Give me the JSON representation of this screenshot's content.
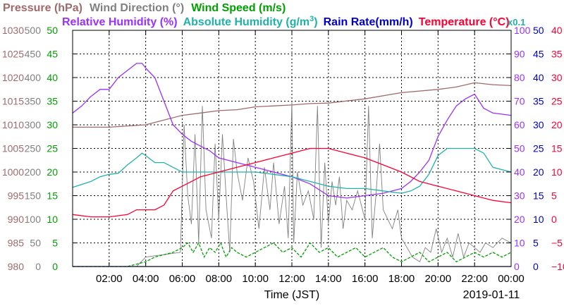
{
  "chart_data": {
    "type": "line",
    "xlabel": "Time (JST)",
    "date_label": "2019-01-11",
    "x_tick_labels": [
      "02:00",
      "04:00",
      "06:00",
      "08:00",
      "10:00",
      "12:00",
      "14:00",
      "16:00",
      "18:00",
      "20:00",
      "22:00",
      "00:00"
    ],
    "xlim_hours": [
      0,
      24
    ],
    "grid": true,
    "legend": {
      "row1": [
        {
          "label": "Pressure (hPa)",
          "color": "#a06a6a"
        },
        {
          "label": "Wind Direction (°)",
          "color": "#808080"
        },
        {
          "label": "Wind Speed (m/s)",
          "color": "#00a000"
        }
      ],
      "row2": [
        {
          "label": "Relative Humidity (%)",
          "color": "#9b30ff"
        },
        {
          "label": "Absolute Humidity (g/m",
          "sup": "3",
          "close": ")",
          "color": "#20b2aa"
        },
        {
          "label": "Rain Rate(mm/h)",
          "color": "#0000cd"
        },
        {
          "label": "Temperature (°C)",
          "color": "#ff0033"
        },
        {
          "label": "x0.1",
          "color": "#20b2aa"
        }
      ]
    },
    "axes": [
      {
        "name": "Pressure (hPa)",
        "side": "left",
        "color": "#a06a6a",
        "ylim": [
          980,
          1030
        ],
        "ticks": [
          "980",
          "985",
          "990",
          "995",
          "1000",
          "1005",
          "1010",
          "1015",
          "1020",
          "1025",
          "1030"
        ]
      },
      {
        "name": "Wind Direction (°)",
        "side": "left",
        "color": "#808080",
        "ylim": [
          0,
          500
        ],
        "ticks": [
          "0",
          "50",
          "100",
          "150",
          "200",
          "250",
          "300",
          "350",
          "400",
          "450",
          "500"
        ]
      },
      {
        "name": "Wind Speed (m/s)",
        "side": "left",
        "color": "#00a000",
        "ylim": [
          0,
          50
        ],
        "ticks": [
          "0",
          "5",
          "10",
          "15",
          "20",
          "25",
          "30",
          "35",
          "40",
          "45",
          "50"
        ]
      },
      {
        "name": "Relative Humidity (%)",
        "side": "right",
        "color": "#9b30ff",
        "ylim": [
          0,
          100
        ],
        "ticks": [
          "0",
          "10",
          "20",
          "30",
          "40",
          "50",
          "60",
          "70",
          "80",
          "90",
          "100"
        ]
      },
      {
        "name": "Rain Rate(mm/h)",
        "side": "right",
        "color": "#0000cd",
        "ylim": [
          0,
          50
        ],
        "ticks": [
          "0",
          "5",
          "10",
          "15",
          "20",
          "25",
          "30",
          "35",
          "40",
          "45",
          "50"
        ]
      },
      {
        "name": "Temperature (°C)",
        "side": "right",
        "color": "#ff0033",
        "ylim": [
          -10,
          40
        ],
        "ticks": [
          "−10",
          "−5",
          "0",
          "5",
          "10",
          "15",
          "20",
          "25",
          "30",
          "35",
          "40"
        ]
      }
    ],
    "series": [
      {
        "name": "Pressure (hPa)",
        "color": "#a06a6a",
        "axis": 0,
        "x": [
          0,
          2,
          4,
          5,
          6,
          7,
          8,
          9,
          10,
          11,
          12,
          13,
          14,
          16,
          18,
          20,
          21,
          22,
          23,
          24
        ],
        "y": [
          1009.5,
          1009.5,
          1010,
          1011,
          1012,
          1012.5,
          1013,
          1013.2,
          1013.8,
          1014,
          1014.2,
          1014.5,
          1014.6,
          1015.5,
          1016.8,
          1017.5,
          1018,
          1018.9,
          1018.5,
          1018.3
        ]
      },
      {
        "name": "Wind Direction (°)",
        "color": "#808080",
        "axis": 1,
        "x": [
          0,
          3.5,
          4,
          5.9,
          6.1,
          6.3,
          6.5,
          6.7,
          6.9,
          7.1,
          7.3,
          7.6,
          7.8,
          8,
          8.2,
          8.4,
          8.6,
          8.8,
          9,
          9.3,
          9.6,
          9.9,
          10.2,
          10.5,
          10.8,
          11,
          11.3,
          11.6,
          11.8,
          12,
          12.1,
          12.3,
          12.6,
          12.9,
          13.2,
          13.4,
          13.6,
          13.8,
          14,
          14.2,
          14.4,
          14.6,
          14.8,
          15,
          15.3,
          15.6,
          16,
          16.2,
          16.4,
          16.6,
          16.8,
          17,
          17.5,
          17.8,
          18,
          18.3,
          18.6,
          19,
          19.3,
          19.6,
          19.9,
          20.2,
          20.5,
          20.8,
          21.1,
          21.4,
          21.7,
          22,
          22.3,
          22.6,
          23,
          23.5,
          24
        ],
        "y": [
          0,
          0,
          20,
          30,
          300,
          150,
          90,
          280,
          50,
          340,
          120,
          60,
          260,
          100,
          280,
          150,
          30,
          270,
          200,
          140,
          230,
          180,
          80,
          210,
          120,
          220,
          90,
          170,
          60,
          350,
          50,
          200,
          130,
          160,
          100,
          340,
          40,
          220,
          90,
          180,
          130,
          190,
          80,
          140,
          120,
          160,
          100,
          340,
          60,
          150,
          260,
          120,
          80,
          120,
          60,
          40,
          20,
          10,
          40,
          30,
          80,
          30,
          60,
          20,
          70,
          20,
          50,
          40,
          30,
          50,
          40,
          60,
          50
        ]
      },
      {
        "name": "Wind Speed (m/s)",
        "color": "#00a000",
        "axis": 2,
        "x": [
          0,
          2,
          3,
          3.5,
          4,
          4.5,
          5,
          5.5,
          6,
          6.3,
          6.6,
          6.9,
          7.2,
          7.5,
          7.8,
          8.1,
          8.4,
          8.7,
          9,
          9.5,
          10,
          10.5,
          11,
          11.5,
          12,
          12.5,
          13,
          13.5,
          14,
          14.5,
          15,
          15.5,
          16,
          16.5,
          17,
          17.5,
          18,
          18.5,
          19,
          19.5,
          20,
          20.5,
          21,
          21.5,
          22,
          22.5,
          23,
          23.5,
          24
        ],
        "y": [
          0,
          0,
          0,
          0.5,
          1,
          2,
          2.5,
          3,
          4,
          5,
          3,
          5,
          2,
          4,
          3,
          5,
          2,
          4,
          3,
          2,
          3,
          4,
          5,
          3,
          4,
          2,
          5,
          3,
          4,
          2,
          3,
          4,
          2,
          3,
          4,
          2,
          1,
          2,
          3,
          1,
          2,
          3,
          1,
          2,
          3,
          2,
          3,
          2,
          3
        ]
      },
      {
        "name": "Relative Humidity (%)",
        "color": "#9b30ff",
        "axis": 3,
        "x": [
          0,
          0.5,
          1,
          1.5,
          2,
          2.5,
          3,
          3.5,
          3.8,
          4,
          4.5,
          5,
          5.5,
          6,
          6.5,
          7,
          7.5,
          8,
          9,
          10,
          11,
          12,
          13,
          14,
          15,
          16,
          17,
          17.5,
          18,
          18.5,
          19,
          19.5,
          20,
          20.5,
          21,
          21.5,
          22,
          22.5,
          23,
          24
        ],
        "y": [
          65,
          68,
          72,
          75,
          75,
          80,
          83,
          86,
          86,
          84,
          80,
          70,
          60,
          56,
          53,
          51,
          49,
          46,
          44,
          42,
          40,
          38,
          35,
          30,
          29,
          30,
          31,
          32,
          33,
          36,
          40,
          45,
          55,
          62,
          68,
          71,
          73,
          67,
          65,
          64
        ]
      },
      {
        "name": "Absolute Humidity (g/m3)",
        "color": "#20b2aa",
        "axis": 3,
        "x": [
          0,
          1,
          1.5,
          2,
          2.5,
          3,
          3.5,
          3.8,
          4,
          4.5,
          5,
          5.5,
          6,
          6.5,
          7,
          8,
          9,
          10,
          11,
          12,
          13,
          14,
          15,
          16,
          17,
          18,
          18.5,
          19,
          19.5,
          20,
          20.5,
          21,
          21.5,
          22,
          22.5,
          23,
          24
        ],
        "y": [
          33.5,
          36,
          38,
          39,
          39.5,
          43,
          46,
          48,
          47,
          44,
          44,
          42,
          40,
          40,
          40,
          40,
          40,
          40,
          39,
          38,
          36,
          34,
          33,
          33,
          32,
          31,
          32,
          34,
          39,
          47,
          50,
          50,
          50,
          50,
          48,
          42,
          40
        ]
      },
      {
        "name": "Rain Rate(mm/h)",
        "color": "#0000cd",
        "axis": 4,
        "x": [
          0,
          24
        ],
        "y": [
          0,
          0
        ]
      },
      {
        "name": "Temperature (°C)",
        "color": "#ff0033",
        "axis": 5,
        "x": [
          0,
          1,
          2,
          3,
          3.5,
          4,
          4.5,
          5,
          5.5,
          6,
          6.5,
          7,
          8,
          9,
          10,
          11,
          12,
          13,
          14,
          15,
          16,
          17,
          18,
          19,
          20,
          21,
          22,
          23,
          24
        ],
        "y": [
          1,
          0.5,
          0.5,
          1,
          2,
          2,
          2,
          3,
          6,
          7,
          8,
          9,
          10,
          11,
          12,
          13,
          14,
          15,
          15,
          14,
          13,
          11.5,
          10,
          8,
          7,
          6,
          5,
          4,
          3.5
        ]
      }
    ]
  }
}
